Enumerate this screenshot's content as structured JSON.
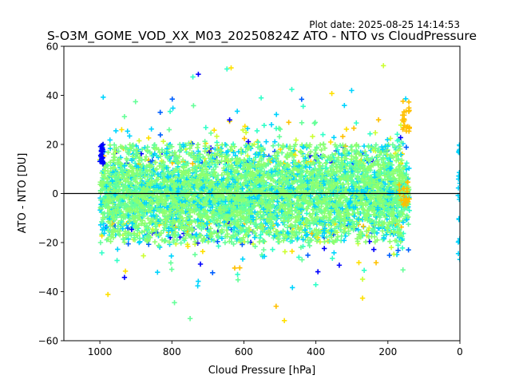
{
  "plot_date": "Plot date: 2025-08-25 14:14:53",
  "chart_data": {
    "type": "scatter",
    "title": "S-O3M_GOME_VOD_XX_M03_20250824Z ATO - NTO vs CloudPressure",
    "xlabel": "Cloud Pressure [hPa]",
    "ylabel": "ATO - NTO [DU]",
    "xlim": [
      1100,
      0
    ],
    "ylim": [
      -60,
      60
    ],
    "x_inverted": true,
    "grid": false,
    "legend": "none",
    "marker": "+",
    "xticks": [
      1000,
      800,
      600,
      400,
      200,
      0
    ],
    "xtick_labels": [
      "1000",
      "800",
      "600",
      "400",
      "200",
      "0"
    ],
    "yticks": [
      -60,
      -40,
      -20,
      0,
      20,
      40,
      60
    ],
    "ytick_labels": [
      "−60",
      "−40",
      "−20",
      "0",
      "20",
      "40",
      "60"
    ],
    "reference_line_y": 0,
    "color_palette": [
      "#0000ff",
      "#0060ff",
      "#00d4ff",
      "#30ffc8",
      "#66ff99",
      "#8cff70",
      "#ccff33",
      "#ffe000",
      "#ffc000"
    ],
    "point_cloud": {
      "x_range": [
        1000,
        140
      ],
      "center_y": 0,
      "core_y_range": [
        -20,
        20
      ],
      "outlier_y_range": [
        -58,
        53
      ],
      "point_count": 3500
    },
    "point_groups": [
      {
        "x_range": [
          1000,
          990
        ],
        "y_range": [
          12,
          20
        ],
        "color": "#0000ff"
      },
      {
        "x_range": [
          170,
          140
        ],
        "y_range": [
          -5,
          5
        ],
        "color": "#ffc000"
      },
      {
        "x_range": [
          160,
          140
        ],
        "y_range": [
          25,
          38
        ],
        "color": "#ffc000"
      },
      {
        "x_range": [
          5,
          0
        ],
        "y_range": [
          -30,
          22
        ],
        "color": "#00d4ff"
      }
    ]
  }
}
